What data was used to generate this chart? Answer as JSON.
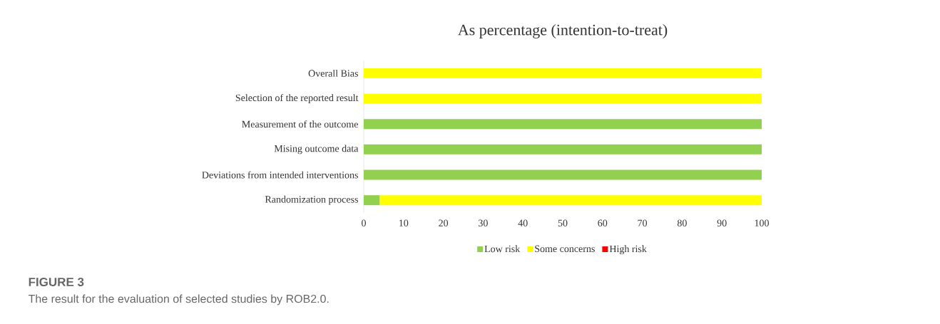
{
  "chart_data": {
    "type": "bar",
    "orientation": "horizontal",
    "stacked": true,
    "title": "As percentage (intention-to-treat)",
    "categories": [
      "Overall Bias",
      "Selection of the reported result",
      "Measurement of the outcome",
      "Mising outcome data",
      "Deviations from intended interventions",
      "Randomization process"
    ],
    "series": [
      {
        "name": "Low risk",
        "color": "#92d050",
        "values": [
          0,
          0,
          100,
          100,
          100,
          4
        ]
      },
      {
        "name": "Some concerns",
        "color": "#ffff00",
        "values": [
          100,
          100,
          0,
          0,
          0,
          96
        ]
      },
      {
        "name": "High risk",
        "color": "#ff0000",
        "values": [
          0,
          0,
          0,
          0,
          0,
          0
        ]
      }
    ],
    "xlim": [
      0,
      100
    ],
    "xticks": [
      0,
      10,
      20,
      30,
      40,
      50,
      60,
      70,
      80,
      90,
      100
    ],
    "legend": "bottom",
    "annotations": [
      "FIGURE 3",
      "The result for the evaluation of selected studies by ROB2.0."
    ]
  }
}
